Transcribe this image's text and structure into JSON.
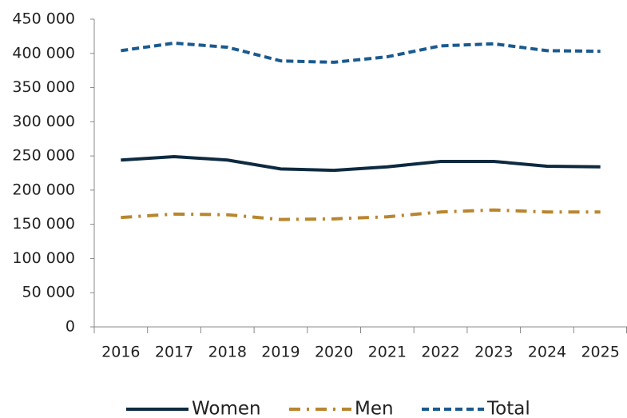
{
  "chart_data": {
    "type": "line",
    "categories": [
      "2016",
      "2017",
      "2018",
      "2019",
      "2020",
      "2021",
      "2022",
      "2023",
      "2024",
      "2025"
    ],
    "series": [
      {
        "name": "Women",
        "color": "#0d2a40",
        "style": "solid",
        "values": [
          244000,
          249000,
          244000,
          231000,
          229000,
          234000,
          242000,
          242000,
          235000,
          234000
        ]
      },
      {
        "name": "Men",
        "color": "#b8862e",
        "style": "dashdot",
        "values": [
          160000,
          165000,
          164000,
          157000,
          158000,
          161000,
          168000,
          171000,
          168000,
          168000
        ]
      },
      {
        "name": "Total",
        "color": "#1a5a8e",
        "style": "dashed",
        "values": [
          404000,
          415000,
          409000,
          389000,
          387000,
          395000,
          411000,
          414000,
          404000,
          403000
        ]
      }
    ],
    "ylim": [
      0,
      450000
    ],
    "yticks": [
      0,
      {
        "value": 50000,
        "label": "50 000"
      },
      {
        "value": 100000,
        "label": "100 000"
      },
      {
        "value": 150000,
        "label": "150 000"
      },
      {
        "value": 200000,
        "label": "200 000"
      },
      {
        "value": 250000,
        "label": "250 000"
      },
      {
        "value": 300000,
        "label": "300 000"
      },
      {
        "value": 350000,
        "label": "350 000"
      },
      {
        "value": 400000,
        "label": "400 000"
      },
      {
        "value": 450000,
        "label": "450 000"
      }
    ],
    "grid": false,
    "legend": "bottom"
  }
}
